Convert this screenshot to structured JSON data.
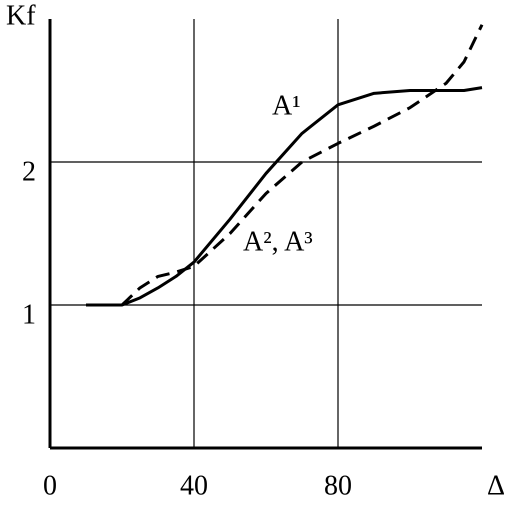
{
  "chart_data": {
    "type": "line",
    "x_label": "Δ",
    "y_label": "Kf",
    "x": [
      10,
      20,
      25,
      30,
      35,
      40,
      50,
      60,
      70,
      80,
      90,
      100,
      110,
      115,
      120
    ],
    "series": [
      {
        "name": "A¹",
        "color": "#000000",
        "dash": "solid",
        "values": [
          1,
          1,
          1.05,
          1.12,
          1.2,
          1.3,
          1.6,
          1.92,
          2.2,
          2.4,
          2.48,
          2.5,
          2.5,
          2.5,
          2.52
        ]
      },
      {
        "name": "A², A³",
        "color": "#000000",
        "dash": "dashed",
        "values": [
          null,
          1,
          1.12,
          1.2,
          1.23,
          1.27,
          1.5,
          1.78,
          2.0,
          2.13,
          2.25,
          2.38,
          2.55,
          2.7,
          2.96
        ]
      }
    ],
    "xlim": [
      0,
      120
    ],
    "ylim": [
      0,
      3
    ],
    "xticks": [
      0,
      40,
      80
    ],
    "yticks": [
      1,
      2
    ],
    "grid": true
  }
}
